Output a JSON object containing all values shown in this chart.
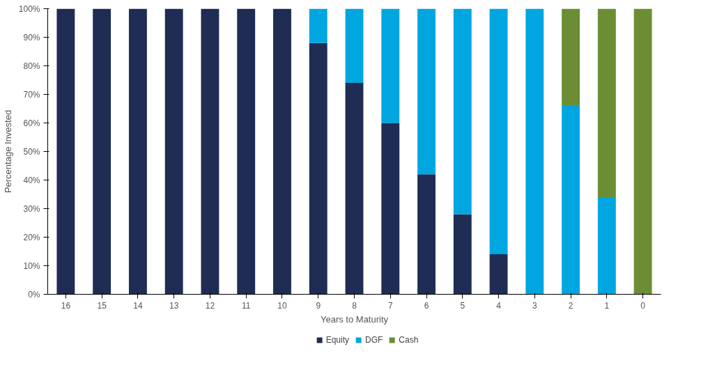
{
  "chart_data": {
    "type": "bar",
    "stacked": true,
    "xlabel": "Years to Maturity",
    "ylabel": "Percentage Invested",
    "categories": [
      "16",
      "15",
      "14",
      "13",
      "12",
      "11",
      "10",
      "9",
      "8",
      "7",
      "6",
      "5",
      "4",
      "3",
      "2",
      "1",
      "0"
    ],
    "series": [
      {
        "name": "Equity",
        "color": "#1f2d54",
        "values": [
          100,
          100,
          100,
          100,
          100,
          100,
          100,
          88,
          74,
          60,
          42,
          28,
          14,
          0,
          0,
          0,
          0
        ]
      },
      {
        "name": "DGF",
        "color": "#00a6e0",
        "values": [
          0,
          0,
          0,
          0,
          0,
          0,
          0,
          12,
          26,
          40,
          58,
          72,
          86,
          100,
          66,
          34,
          0
        ]
      },
      {
        "name": "Cash",
        "color": "#6b8e35",
        "values": [
          0,
          0,
          0,
          0,
          0,
          0,
          0,
          0,
          0,
          0,
          0,
          0,
          0,
          0,
          34,
          66,
          100
        ]
      }
    ],
    "ylim": [
      0,
      100
    ],
    "yticks": [
      {
        "value": 0,
        "label": "0%"
      },
      {
        "value": 10,
        "label": "10%"
      },
      {
        "value": 20,
        "label": "20%"
      },
      {
        "value": 30,
        "label": "30%"
      },
      {
        "value": 40,
        "label": "40%"
      },
      {
        "value": 50,
        "label": "50%"
      },
      {
        "value": 60,
        "label": "60%"
      },
      {
        "value": 70,
        "label": "70%"
      },
      {
        "value": 80,
        "label": "80%"
      },
      {
        "value": 90,
        "label": "90%"
      },
      {
        "value": 100,
        "label": "100%"
      }
    ],
    "grid": false,
    "legend": "bottom"
  }
}
